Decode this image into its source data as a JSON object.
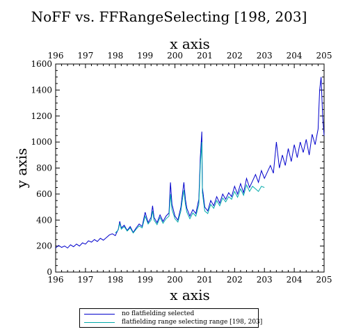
{
  "chart_data": {
    "type": "line",
    "title": "NoFF vs. FFRangeSelecting [198, 203]",
    "xlabel": "x axis",
    "ylabel": "y axis",
    "xlim": [
      196,
      205
    ],
    "ylim": [
      0,
      1600
    ],
    "x_ticks": [
      "196",
      "197",
      "198",
      "199",
      "200",
      "201",
      "202",
      "203",
      "204",
      "205"
    ],
    "y_ticks": [
      "0",
      "200",
      "400",
      "600",
      "800",
      "1000",
      "1200",
      "1400",
      "1600"
    ],
    "legend_position": "bottom",
    "series": [
      {
        "name": "no flatfielding selected",
        "color": "#0000cc",
        "points": [
          [
            196.0,
            185
          ],
          [
            196.1,
            205
          ],
          [
            196.2,
            190
          ],
          [
            196.3,
            200
          ],
          [
            196.4,
            185
          ],
          [
            196.5,
            210
          ],
          [
            196.6,
            195
          ],
          [
            196.7,
            215
          ],
          [
            196.8,
            200
          ],
          [
            196.9,
            225
          ],
          [
            197.0,
            215
          ],
          [
            197.1,
            240
          ],
          [
            197.2,
            230
          ],
          [
            197.3,
            250
          ],
          [
            197.4,
            235
          ],
          [
            197.5,
            260
          ],
          [
            197.6,
            245
          ],
          [
            197.7,
            265
          ],
          [
            197.8,
            285
          ],
          [
            197.9,
            295
          ],
          [
            198.0,
            280
          ],
          [
            198.1,
            330
          ],
          [
            198.15,
            390
          ],
          [
            198.2,
            340
          ],
          [
            198.3,
            360
          ],
          [
            198.4,
            320
          ],
          [
            198.5,
            350
          ],
          [
            198.6,
            305
          ],
          [
            198.7,
            340
          ],
          [
            198.8,
            370
          ],
          [
            198.9,
            350
          ],
          [
            199.0,
            460
          ],
          [
            199.1,
            380
          ],
          [
            199.2,
            420
          ],
          [
            199.25,
            510
          ],
          [
            199.3,
            420
          ],
          [
            199.4,
            380
          ],
          [
            199.5,
            440
          ],
          [
            199.6,
            390
          ],
          [
            199.7,
            430
          ],
          [
            199.8,
            455
          ],
          [
            199.85,
            690
          ],
          [
            199.9,
            520
          ],
          [
            200.0,
            430
          ],
          [
            200.1,
            400
          ],
          [
            200.2,
            500
          ],
          [
            200.25,
            600
          ],
          [
            200.3,
            690
          ],
          [
            200.35,
            560
          ],
          [
            200.4,
            490
          ],
          [
            200.5,
            430
          ],
          [
            200.6,
            480
          ],
          [
            200.7,
            450
          ],
          [
            200.8,
            560
          ],
          [
            200.85,
            880
          ],
          [
            200.9,
            1080
          ],
          [
            200.92,
            650
          ],
          [
            201.0,
            500
          ],
          [
            201.1,
            470
          ],
          [
            201.2,
            550
          ],
          [
            201.3,
            510
          ],
          [
            201.4,
            580
          ],
          [
            201.5,
            530
          ],
          [
            201.6,
            600
          ],
          [
            201.7,
            560
          ],
          [
            201.8,
            610
          ],
          [
            201.9,
            580
          ],
          [
            202.0,
            660
          ],
          [
            202.1,
            600
          ],
          [
            202.2,
            680
          ],
          [
            202.3,
            610
          ],
          [
            202.4,
            720
          ],
          [
            202.5,
            650
          ],
          [
            202.6,
            700
          ],
          [
            202.7,
            750
          ],
          [
            202.8,
            690
          ],
          [
            202.9,
            780
          ],
          [
            203.0,
            720
          ],
          [
            203.1,
            770
          ],
          [
            203.2,
            820
          ],
          [
            203.3,
            760
          ],
          [
            203.4,
            1000
          ],
          [
            203.5,
            800
          ],
          [
            203.6,
            900
          ],
          [
            203.7,
            820
          ],
          [
            203.8,
            950
          ],
          [
            203.9,
            850
          ],
          [
            204.0,
            980
          ],
          [
            204.1,
            880
          ],
          [
            204.2,
            1000
          ],
          [
            204.3,
            920
          ],
          [
            204.4,
            1020
          ],
          [
            204.5,
            900
          ],
          [
            204.6,
            1060
          ],
          [
            204.7,
            980
          ],
          [
            204.8,
            1100
          ],
          [
            204.85,
            1400
          ],
          [
            204.9,
            1500
          ],
          [
            204.95,
            1200
          ],
          [
            205.0,
            1050
          ]
        ]
      },
      {
        "name": "flatfielding range selecting range [198, 203]",
        "color": "#00aaaa",
        "points": [
          [
            198.0,
            300
          ],
          [
            198.1,
            325
          ],
          [
            198.15,
            375
          ],
          [
            198.2,
            330
          ],
          [
            198.3,
            350
          ],
          [
            198.4,
            315
          ],
          [
            198.5,
            340
          ],
          [
            198.6,
            300
          ],
          [
            198.7,
            330
          ],
          [
            198.8,
            355
          ],
          [
            198.9,
            340
          ],
          [
            199.0,
            430
          ],
          [
            199.1,
            370
          ],
          [
            199.2,
            400
          ],
          [
            199.25,
            470
          ],
          [
            199.3,
            400
          ],
          [
            199.4,
            365
          ],
          [
            199.5,
            420
          ],
          [
            199.6,
            375
          ],
          [
            199.7,
            410
          ],
          [
            199.8,
            430
          ],
          [
            199.85,
            600
          ],
          [
            199.9,
            480
          ],
          [
            200.0,
            410
          ],
          [
            200.1,
            385
          ],
          [
            200.2,
            470
          ],
          [
            200.25,
            560
          ],
          [
            200.3,
            630
          ],
          [
            200.35,
            520
          ],
          [
            200.4,
            460
          ],
          [
            200.5,
            410
          ],
          [
            200.6,
            455
          ],
          [
            200.7,
            430
          ],
          [
            200.8,
            520
          ],
          [
            200.85,
            820
          ],
          [
            200.9,
            1000
          ],
          [
            200.92,
            610
          ],
          [
            201.0,
            470
          ],
          [
            201.1,
            450
          ],
          [
            201.2,
            520
          ],
          [
            201.3,
            490
          ],
          [
            201.4,
            550
          ],
          [
            201.5,
            510
          ],
          [
            201.6,
            570
          ],
          [
            201.7,
            540
          ],
          [
            201.8,
            580
          ],
          [
            201.9,
            560
          ],
          [
            202.0,
            620
          ],
          [
            202.1,
            575
          ],
          [
            202.2,
            640
          ],
          [
            202.3,
            590
          ],
          [
            202.4,
            670
          ],
          [
            202.5,
            620
          ],
          [
            202.6,
            660
          ],
          [
            202.7,
            640
          ],
          [
            202.8,
            620
          ],
          [
            202.9,
            660
          ],
          [
            203.0,
            650
          ]
        ]
      }
    ]
  }
}
